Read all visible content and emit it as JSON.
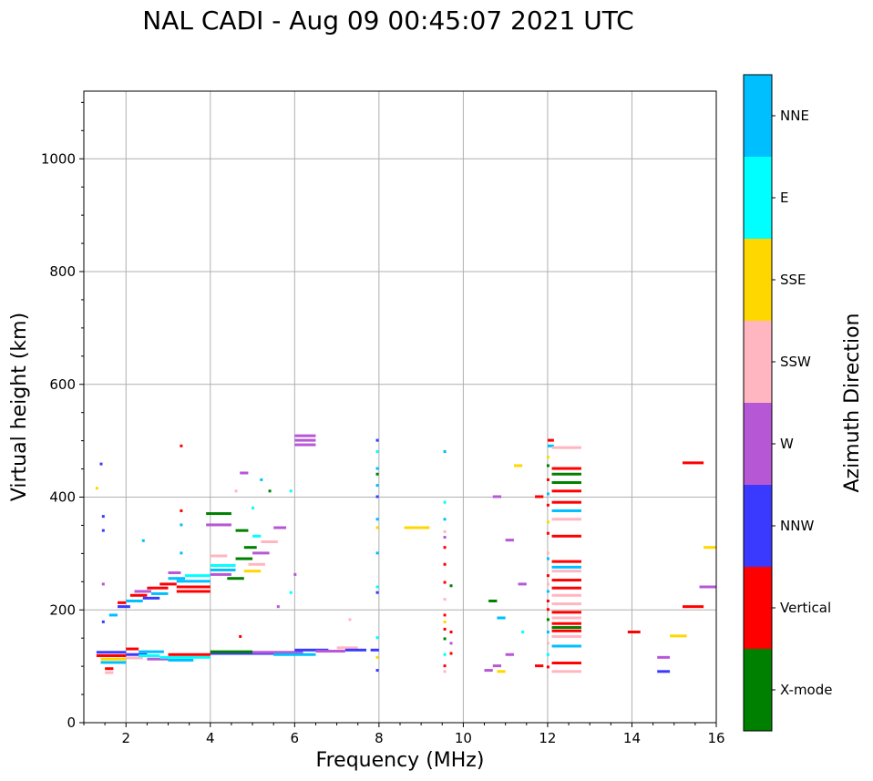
{
  "chart_data": {
    "type": "scatter",
    "title": "NAL CADI - Aug 09 00:45:07 2021 UTC",
    "xlabel": "Frequency (MHz)",
    "ylabel": "Virtual height (km)",
    "xlim": [
      1,
      16
    ],
    "ylim": [
      0,
      1120
    ],
    "xticks": [
      2,
      4,
      6,
      8,
      10,
      12,
      14,
      16
    ],
    "yticks": [
      0,
      200,
      400,
      600,
      800,
      1000
    ],
    "grid": true,
    "colorbar": {
      "label": "Azimuth Direction",
      "categories": [
        "X-mode",
        "Vertical",
        "NNW",
        "W",
        "SSW",
        "SSE",
        "E",
        "NNE"
      ],
      "colors": [
        "#008000",
        "#ff0000",
        "#3a3aff",
        "#b657d6",
        "#ffb6c1",
        "#ffd700",
        "#00ffff",
        "#00bfff"
      ]
    },
    "segments": [
      {
        "x1": 1.3,
        "x2": 2.0,
        "y": 118,
        "c": "Vertical"
      },
      {
        "x1": 1.3,
        "x2": 2.0,
        "y": 124,
        "c": "NNW"
      },
      {
        "x1": 1.4,
        "x2": 2.0,
        "y": 112,
        "c": "SSE"
      },
      {
        "x1": 1.5,
        "x2": 1.7,
        "y": 95,
        "c": "Vertical"
      },
      {
        "x1": 1.5,
        "x2": 1.7,
        "y": 88,
        "c": "SSW"
      },
      {
        "x1": 1.4,
        "x2": 2.0,
        "y": 106,
        "c": "NNE"
      },
      {
        "x1": 2.0,
        "x2": 2.3,
        "y": 130,
        "c": "Vertical"
      },
      {
        "x1": 2.0,
        "x2": 2.5,
        "y": 120,
        "c": "NNW"
      },
      {
        "x1": 2.0,
        "x2": 2.4,
        "y": 114,
        "c": "SSW"
      },
      {
        "x1": 2.3,
        "x2": 2.8,
        "y": 118,
        "c": "E"
      },
      {
        "x1": 2.3,
        "x2": 2.9,
        "y": 125,
        "c": "NNE"
      },
      {
        "x1": 2.5,
        "x2": 3.0,
        "y": 112,
        "c": "W"
      },
      {
        "x1": 2.8,
        "x2": 4.0,
        "y": 115,
        "c": "E"
      },
      {
        "x1": 3.0,
        "x2": 4.0,
        "y": 120,
        "c": "Vertical"
      },
      {
        "x1": 3.0,
        "x2": 3.6,
        "y": 110,
        "c": "NNE"
      },
      {
        "x1": 4.0,
        "x2": 6.0,
        "y": 122,
        "c": "NNW"
      },
      {
        "x1": 4.0,
        "x2": 5.0,
        "y": 125,
        "c": "X-mode"
      },
      {
        "x1": 5.0,
        "x2": 6.2,
        "y": 124,
        "c": "W"
      },
      {
        "x1": 5.5,
        "x2": 6.5,
        "y": 120,
        "c": "NNE"
      },
      {
        "x1": 6.0,
        "x2": 6.8,
        "y": 128,
        "c": "NNW"
      },
      {
        "x1": 6.5,
        "x2": 7.2,
        "y": 126,
        "c": "W"
      },
      {
        "x1": 7.0,
        "x2": 7.5,
        "y": 132,
        "c": "SSW"
      },
      {
        "x1": 7.2,
        "x2": 7.7,
        "y": 128,
        "c": "NNW"
      },
      {
        "x1": 7.8,
        "x2": 8.0,
        "y": 128,
        "c": "NNW"
      },
      {
        "x1": 1.6,
        "x2": 1.8,
        "y": 190,
        "c": "NNE"
      },
      {
        "x1": 1.8,
        "x2": 2.1,
        "y": 205,
        "c": "NNW"
      },
      {
        "x1": 1.8,
        "x2": 2.0,
        "y": 212,
        "c": "Vertical"
      },
      {
        "x1": 2.0,
        "x2": 2.4,
        "y": 215,
        "c": "NNE"
      },
      {
        "x1": 2.1,
        "x2": 2.5,
        "y": 225,
        "c": "Vertical"
      },
      {
        "x1": 2.2,
        "x2": 2.6,
        "y": 232,
        "c": "W"
      },
      {
        "x1": 2.4,
        "x2": 2.8,
        "y": 220,
        "c": "NNW"
      },
      {
        "x1": 2.5,
        "x2": 3.0,
        "y": 238,
        "c": "Vertical"
      },
      {
        "x1": 2.6,
        "x2": 3.0,
        "y": 228,
        "c": "NNE"
      },
      {
        "x1": 2.8,
        "x2": 3.2,
        "y": 245,
        "c": "Vertical"
      },
      {
        "x1": 3.0,
        "x2": 3.4,
        "y": 255,
        "c": "NNE"
      },
      {
        "x1": 3.2,
        "x2": 4.0,
        "y": 240,
        "c": "Vertical"
      },
      {
        "x1": 3.2,
        "x2": 4.0,
        "y": 232,
        "c": "Vertical"
      },
      {
        "x1": 3.2,
        "x2": 4.0,
        "y": 250,
        "c": "NNE"
      },
      {
        "x1": 3.4,
        "x2": 4.0,
        "y": 260,
        "c": "E"
      },
      {
        "x1": 3.0,
        "x2": 3.3,
        "y": 265,
        "c": "W"
      },
      {
        "x1": 4.0,
        "x2": 4.6,
        "y": 270,
        "c": "NNE"
      },
      {
        "x1": 4.0,
        "x2": 4.5,
        "y": 262,
        "c": "W"
      },
      {
        "x1": 4.0,
        "x2": 4.6,
        "y": 278,
        "c": "E"
      },
      {
        "x1": 4.0,
        "x2": 4.4,
        "y": 295,
        "c": "SSW"
      },
      {
        "x1": 4.4,
        "x2": 4.8,
        "y": 255,
        "c": "X-mode"
      },
      {
        "x1": 4.6,
        "x2": 5.0,
        "y": 290,
        "c": "X-mode"
      },
      {
        "x1": 4.8,
        "x2": 5.2,
        "y": 268,
        "c": "SSE"
      },
      {
        "x1": 4.8,
        "x2": 5.1,
        "y": 310,
        "c": "X-mode"
      },
      {
        "x1": 4.9,
        "x2": 5.3,
        "y": 280,
        "c": "SSW"
      },
      {
        "x1": 5.0,
        "x2": 5.4,
        "y": 300,
        "c": "W"
      },
      {
        "x1": 5.2,
        "x2": 5.6,
        "y": 320,
        "c": "SSW"
      },
      {
        "x1": 5.0,
        "x2": 5.2,
        "y": 330,
        "c": "E"
      },
      {
        "x1": 4.6,
        "x2": 4.9,
        "y": 340,
        "c": "X-mode"
      },
      {
        "x1": 3.9,
        "x2": 4.5,
        "y": 370,
        "c": "X-mode"
      },
      {
        "x1": 3.9,
        "x2": 4.5,
        "y": 350,
        "c": "W"
      },
      {
        "x1": 4.7,
        "x2": 4.9,
        "y": 442,
        "c": "W"
      },
      {
        "x1": 5.5,
        "x2": 5.8,
        "y": 345,
        "c": "W"
      },
      {
        "x1": 6.0,
        "x2": 6.5,
        "y": 500,
        "c": "W"
      },
      {
        "x1": 6.0,
        "x2": 6.5,
        "y": 492,
        "c": "W"
      },
      {
        "x1": 6.0,
        "x2": 6.5,
        "y": 508,
        "c": "W"
      },
      {
        "x1": 8.6,
        "x2": 9.2,
        "y": 345,
        "c": "SSE"
      },
      {
        "x1": 10.7,
        "x2": 10.9,
        "y": 400,
        "c": "W"
      },
      {
        "x1": 11.2,
        "x2": 11.4,
        "y": 455,
        "c": "SSE"
      },
      {
        "x1": 11.7,
        "x2": 11.9,
        "y": 400,
        "c": "Vertical"
      },
      {
        "x1": 11.0,
        "x2": 11.2,
        "y": 323,
        "c": "W"
      },
      {
        "x1": 11.3,
        "x2": 11.5,
        "y": 245,
        "c": "W"
      },
      {
        "x1": 10.6,
        "x2": 10.8,
        "y": 215,
        "c": "X-mode"
      },
      {
        "x1": 10.8,
        "x2": 11.0,
        "y": 185,
        "c": "NNE"
      },
      {
        "x1": 11.0,
        "x2": 11.2,
        "y": 120,
        "c": "W"
      },
      {
        "x1": 10.5,
        "x2": 10.7,
        "y": 92,
        "c": "W"
      },
      {
        "x1": 10.7,
        "x2": 10.9,
        "y": 100,
        "c": "W"
      },
      {
        "x1": 10.8,
        "x2": 11.0,
        "y": 90,
        "c": "SSE"
      },
      {
        "x1": 11.7,
        "x2": 11.9,
        "y": 100,
        "c": "Vertical"
      },
      {
        "x1": 12.0,
        "x2": 12.15,
        "y": 500,
        "c": "Vertical"
      },
      {
        "x1": 12.0,
        "x2": 12.15,
        "y": 490,
        "c": "NNE"
      },
      {
        "x1": 12.1,
        "x2": 12.8,
        "y": 487,
        "c": "SSW"
      },
      {
        "x1": 12.1,
        "x2": 12.8,
        "y": 450,
        "c": "Vertical"
      },
      {
        "x1": 12.1,
        "x2": 12.8,
        "y": 440,
        "c": "X-mode"
      },
      {
        "x1": 12.1,
        "x2": 12.8,
        "y": 425,
        "c": "X-mode"
      },
      {
        "x1": 12.1,
        "x2": 12.8,
        "y": 410,
        "c": "Vertical"
      },
      {
        "x1": 12.1,
        "x2": 12.8,
        "y": 390,
        "c": "Vertical"
      },
      {
        "x1": 12.1,
        "x2": 12.8,
        "y": 375,
        "c": "NNE"
      },
      {
        "x1": 12.1,
        "x2": 12.8,
        "y": 360,
        "c": "SSW"
      },
      {
        "x1": 12.1,
        "x2": 12.8,
        "y": 330,
        "c": "Vertical"
      },
      {
        "x1": 12.1,
        "x2": 12.8,
        "y": 285,
        "c": "Vertical"
      },
      {
        "x1": 12.1,
        "x2": 12.8,
        "y": 275,
        "c": "NNE"
      },
      {
        "x1": 12.1,
        "x2": 12.8,
        "y": 268,
        "c": "SSW"
      },
      {
        "x1": 12.1,
        "x2": 12.8,
        "y": 252,
        "c": "Vertical"
      },
      {
        "x1": 12.1,
        "x2": 12.8,
        "y": 238,
        "c": "Vertical"
      },
      {
        "x1": 12.1,
        "x2": 12.8,
        "y": 225,
        "c": "SSW"
      },
      {
        "x1": 12.1,
        "x2": 12.8,
        "y": 210,
        "c": "SSW"
      },
      {
        "x1": 12.1,
        "x2": 12.8,
        "y": 195,
        "c": "Vertical"
      },
      {
        "x1": 12.1,
        "x2": 12.8,
        "y": 185,
        "c": "SSW"
      },
      {
        "x1": 12.1,
        "x2": 12.8,
        "y": 175,
        "c": "Vertical"
      },
      {
        "x1": 12.1,
        "x2": 12.8,
        "y": 168,
        "c": "X-mode"
      },
      {
        "x1": 12.1,
        "x2": 12.8,
        "y": 162,
        "c": "Vertical"
      },
      {
        "x1": 12.1,
        "x2": 12.8,
        "y": 152,
        "c": "SSW"
      },
      {
        "x1": 12.1,
        "x2": 12.8,
        "y": 135,
        "c": "NNE"
      },
      {
        "x1": 12.1,
        "x2": 12.8,
        "y": 105,
        "c": "Vertical"
      },
      {
        "x1": 12.1,
        "x2": 12.8,
        "y": 90,
        "c": "SSW"
      },
      {
        "x1": 13.9,
        "x2": 14.2,
        "y": 160,
        "c": "Vertical"
      },
      {
        "x1": 14.6,
        "x2": 14.9,
        "y": 115,
        "c": "W"
      },
      {
        "x1": 14.6,
        "x2": 14.9,
        "y": 90,
        "c": "NNW"
      },
      {
        "x1": 14.9,
        "x2": 15.3,
        "y": 153,
        "c": "SSE"
      },
      {
        "x1": 15.2,
        "x2": 15.7,
        "y": 460,
        "c": "Vertical"
      },
      {
        "x1": 15.2,
        "x2": 15.7,
        "y": 205,
        "c": "Vertical"
      },
      {
        "x1": 15.6,
        "x2": 16.0,
        "y": 240,
        "c": "W"
      },
      {
        "x1": 15.7,
        "x2": 16.0,
        "y": 310,
        "c": "SSE"
      }
    ],
    "dots": [
      {
        "x": 1.4,
        "y": 458,
        "c": "NNW"
      },
      {
        "x": 1.3,
        "y": 415,
        "c": "SSE"
      },
      {
        "x": 1.45,
        "y": 365,
        "c": "NNW"
      },
      {
        "x": 1.45,
        "y": 340,
        "c": "NNW"
      },
      {
        "x": 1.45,
        "y": 178,
        "c": "NNW"
      },
      {
        "x": 1.45,
        "y": 245,
        "c": "W"
      },
      {
        "x": 2.4,
        "y": 322,
        "c": "NNE"
      },
      {
        "x": 3.3,
        "y": 490,
        "c": "Vertical"
      },
      {
        "x": 3.3,
        "y": 375,
        "c": "Vertical"
      },
      {
        "x": 3.3,
        "y": 350,
        "c": "NNE"
      },
      {
        "x": 3.3,
        "y": 300,
        "c": "NNE"
      },
      {
        "x": 4.6,
        "y": 410,
        "c": "SSW"
      },
      {
        "x": 5.2,
        "y": 430,
        "c": "NNE"
      },
      {
        "x": 5.4,
        "y": 410,
        "c": "X-mode"
      },
      {
        "x": 5.0,
        "y": 380,
        "c": "E"
      },
      {
        "x": 5.6,
        "y": 205,
        "c": "W"
      },
      {
        "x": 4.7,
        "y": 152,
        "c": "Vertical"
      },
      {
        "x": 5.9,
        "y": 410,
        "c": "E"
      },
      {
        "x": 5.9,
        "y": 230,
        "c": "E"
      },
      {
        "x": 6.0,
        "y": 262,
        "c": "W"
      },
      {
        "x": 7.3,
        "y": 182,
        "c": "SSW"
      },
      {
        "x": 7.95,
        "y": 500,
        "c": "NNW"
      },
      {
        "x": 7.95,
        "y": 480,
        "c": "E"
      },
      {
        "x": 7.95,
        "y": 450,
        "c": "NNE"
      },
      {
        "x": 7.95,
        "y": 440,
        "c": "X-mode"
      },
      {
        "x": 7.95,
        "y": 420,
        "c": "NNE"
      },
      {
        "x": 7.95,
        "y": 400,
        "c": "NNW"
      },
      {
        "x": 7.95,
        "y": 360,
        "c": "NNE"
      },
      {
        "x": 7.95,
        "y": 345,
        "c": "SSE"
      },
      {
        "x": 7.95,
        "y": 300,
        "c": "NNE"
      },
      {
        "x": 7.95,
        "y": 240,
        "c": "E"
      },
      {
        "x": 7.95,
        "y": 230,
        "c": "NNW"
      },
      {
        "x": 7.95,
        "y": 150,
        "c": "E"
      },
      {
        "x": 7.95,
        "y": 115,
        "c": "SSE"
      },
      {
        "x": 7.95,
        "y": 92,
        "c": "NNW"
      },
      {
        "x": 9.55,
        "y": 480,
        "c": "NNE"
      },
      {
        "x": 9.55,
        "y": 390,
        "c": "E"
      },
      {
        "x": 9.55,
        "y": 360,
        "c": "NNE"
      },
      {
        "x": 9.55,
        "y": 338,
        "c": "SSW"
      },
      {
        "x": 9.55,
        "y": 328,
        "c": "W"
      },
      {
        "x": 9.55,
        "y": 310,
        "c": "Vertical"
      },
      {
        "x": 9.55,
        "y": 280,
        "c": "Vertical"
      },
      {
        "x": 9.55,
        "y": 248,
        "c": "Vertical"
      },
      {
        "x": 9.7,
        "y": 242,
        "c": "X-mode"
      },
      {
        "x": 9.55,
        "y": 218,
        "c": "SSW"
      },
      {
        "x": 9.55,
        "y": 190,
        "c": "Vertical"
      },
      {
        "x": 9.55,
        "y": 178,
        "c": "SSE"
      },
      {
        "x": 9.55,
        "y": 165,
        "c": "Vertical"
      },
      {
        "x": 9.7,
        "y": 160,
        "c": "Vertical"
      },
      {
        "x": 9.55,
        "y": 148,
        "c": "X-mode"
      },
      {
        "x": 9.7,
        "y": 140,
        "c": "W"
      },
      {
        "x": 9.55,
        "y": 120,
        "c": "E"
      },
      {
        "x": 9.7,
        "y": 122,
        "c": "Vertical"
      },
      {
        "x": 9.55,
        "y": 100,
        "c": "Vertical"
      },
      {
        "x": 9.55,
        "y": 90,
        "c": "SSW"
      },
      {
        "x": 11.4,
        "y": 160,
        "c": "E"
      },
      {
        "x": 12.0,
        "y": 470,
        "c": "SSE"
      },
      {
        "x": 12.0,
        "y": 455,
        "c": "X-mode"
      },
      {
        "x": 12.0,
        "y": 430,
        "c": "Vertical"
      },
      {
        "x": 12.0,
        "y": 405,
        "c": "NNE"
      },
      {
        "x": 12.0,
        "y": 385,
        "c": "Vertical"
      },
      {
        "x": 12.0,
        "y": 355,
        "c": "SSE"
      },
      {
        "x": 12.0,
        "y": 335,
        "c": "Vertical"
      },
      {
        "x": 12.0,
        "y": 300,
        "c": "SSW"
      },
      {
        "x": 12.0,
        "y": 290,
        "c": "NNE"
      },
      {
        "x": 12.0,
        "y": 260,
        "c": "Vertical"
      },
      {
        "x": 12.0,
        "y": 245,
        "c": "SSW"
      },
      {
        "x": 12.0,
        "y": 232,
        "c": "NNE"
      },
      {
        "x": 12.0,
        "y": 215,
        "c": "Vertical"
      },
      {
        "x": 12.0,
        "y": 200,
        "c": "Vertical"
      },
      {
        "x": 12.0,
        "y": 182,
        "c": "X-mode"
      },
      {
        "x": 12.0,
        "y": 160,
        "c": "NNE"
      },
      {
        "x": 12.0,
        "y": 140,
        "c": "SSW"
      },
      {
        "x": 12.0,
        "y": 120,
        "c": "E"
      },
      {
        "x": 12.0,
        "y": 98,
        "c": "Vertical"
      }
    ]
  }
}
